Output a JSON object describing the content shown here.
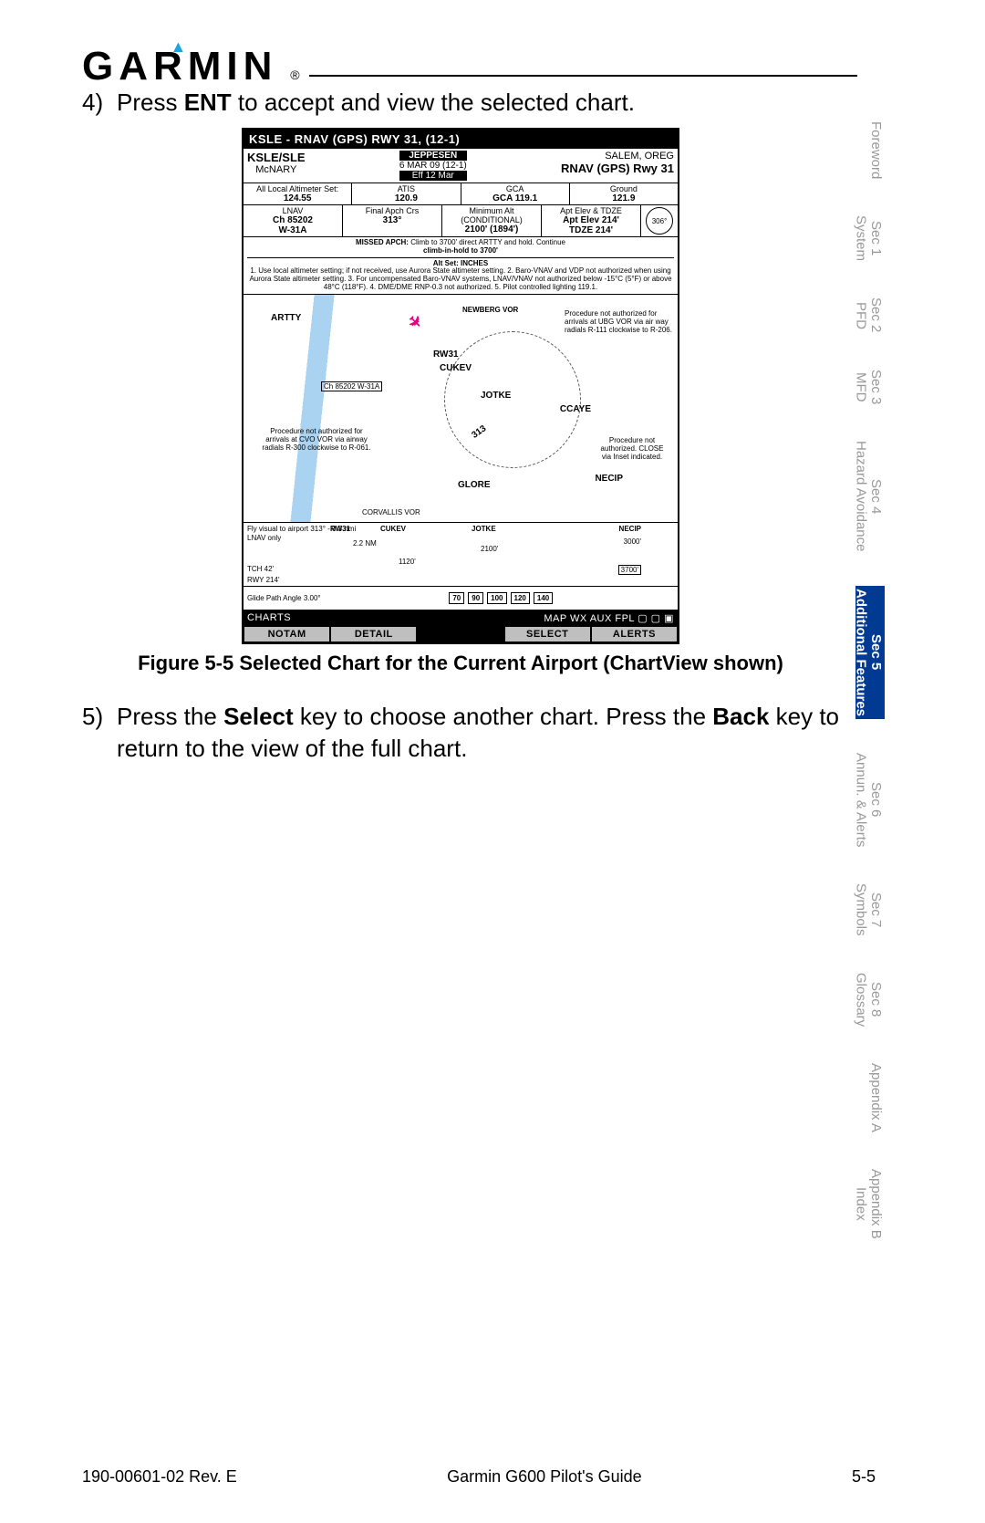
{
  "header": {
    "brand": "GARMIN"
  },
  "steps": {
    "s4_num": "4)",
    "s4": "Press <b>ENT</b> to accept and view the selected chart.",
    "s5_num": "5)",
    "s5": "Press the <b>Select</b> key to choose another chart. Press the <b>Back</b> key to return to the view of the full chart."
  },
  "figure": {
    "caption": "Figure 5-5  Selected Chart for the Current Airport (ChartView shown)",
    "title": "KSLE  -  RNAV (GPS) RWY 31, (12-1)",
    "info": {
      "ident": "KSLE/SLE",
      "sub": "McNARY",
      "jepp": "JEPPESEN",
      "date": "6 MAR 09  (12-1)",
      "eff": "Eff 12 Mar",
      "loc": "SALEM, OREG",
      "proc": "RNAV (GPS) Rwy 31"
    },
    "strip1": {
      "c1_lbl": "All Local Altimeter Set:",
      "c1": "124.55",
      "c2_lbl": "ATIS",
      "c2": "120.9",
      "c3_lbl": "GCA",
      "c3": "GCA 119.1",
      "c4_lbl": "Ground",
      "c4": "121.9"
    },
    "strip2": {
      "c1_lbl": "LNAV",
      "c1a": "Ch 85202",
      "c1b": "W-31A",
      "c2_lbl": "Final Apch Crs",
      "c2": "313°",
      "c3_lbl": "Minimum Alt (CONDITIONAL)",
      "c3": "2100' (1894')",
      "c4_lbl": "Apt Elev & TDZE",
      "c4a": "Apt Elev 214'",
      "c4b": "TDZE 214'",
      "c5": "306°"
    },
    "notes": {
      "msa": "MISSED APCH:",
      "msa_text": "Climb to 3700' direct ARTTY and hold. Continue",
      "msa2": "climb-in-hold to 3700'",
      "setnote": "Alt Set: INCHES",
      "setnote2": "1. Use local altimeter setting; if not received, use Aurora State altimeter setting. 2. Baro-VNAV and VDP not authorized when using Aurora State altimeter setting. 3. For uncompensated Baro-VNAV systems, LNAV/VNAV not authorized below -15°C (5°F) or above 48°C (118°F). 4. DME/DME RNP-0.3 not authorized. 5. Pilot controlled lighting 119.1."
    },
    "map": {
      "artty": "ARTTY",
      "ch": "Ch 85202 W-31A",
      "vor": "CORVALLIS VOR",
      "degrees": "313",
      "cca": "CCAYE",
      "cukev": "CUKEV",
      "jotke": "JOTKE",
      "glore": "GLORE",
      "necip": "NECIP",
      "rw31": "RW31",
      "newberg": "NEWBERG VOR",
      "proc_note": "Procedure not authorized for arrivals at UBG VOR via air way radials R-111 clockwise to R-206.",
      "proc_note2": "Procedure not authorized for arrivals at CVO VOR via airway radials R-300 clockwise to R-061."
    },
    "profile": {
      "fly": "Fly visual to airport 313° - 0.3 nmi",
      "lnav": "LNAV only",
      "cukev": "CUKEV",
      "jotke": "JOTKE",
      "necip": "NECIP",
      "nm": "2.2 NM",
      "tch": "TCH 42'",
      "rwy": "RWY  214'",
      "alt": "3700'",
      "prof1": "2100'",
      "prof2": "1120'",
      "prof3": "3000'",
      "glide": "Glide Path Angle 3.00°"
    },
    "tabs": {
      "left": "CHARTS",
      "middle": "MAP WX AUX FPL ▢ ▢ ▣"
    },
    "softkeys": [
      "NOTAM",
      "DETAIL",
      "",
      "SELECT",
      "ALERTS"
    ]
  },
  "sidetabs": [
    {
      "l1": "",
      "l2": "Foreword"
    },
    {
      "l1": "Sec 1",
      "l2": "System"
    },
    {
      "l1": "Sec 2",
      "l2": "PFD"
    },
    {
      "l1": "Sec 3",
      "l2": "MFD"
    },
    {
      "l1": "Sec 4",
      "l2": "Hazard Avoidance"
    },
    {
      "l1": "Sec 5",
      "l2": "Additional Features",
      "active": true
    },
    {
      "l1": "Sec 6",
      "l2": "Annun. & Alerts"
    },
    {
      "l1": "Sec 7",
      "l2": "Symbols"
    },
    {
      "l1": "Sec 8",
      "l2": "Glossary"
    },
    {
      "l1": "",
      "l2": "Appendix A"
    },
    {
      "l1": "Appendix B",
      "l2": "Index"
    }
  ],
  "footer": {
    "left": "190-00601-02  Rev. E",
    "center": "Garmin G600 Pilot's Guide",
    "right": "5-5"
  }
}
